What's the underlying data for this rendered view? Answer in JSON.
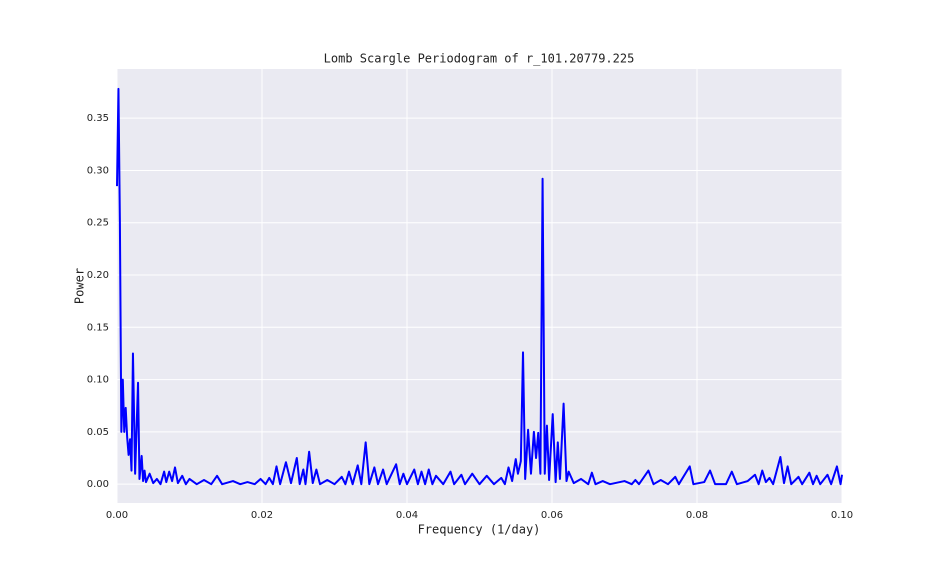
{
  "chart_data": {
    "type": "line",
    "title": "Lomb Scargle Periodogram of r_101.20779.225",
    "xlabel": "Frequency (1/day)",
    "ylabel": "Power",
    "color": "#0000ff",
    "grid": true,
    "xlim": [
      0,
      0.1
    ],
    "ylim": [
      -0.018,
      0.397
    ],
    "xticks": [
      {
        "value": 0,
        "label": "0.00"
      },
      {
        "value": 0.02,
        "label": "0.02"
      },
      {
        "value": 0.04,
        "label": "0.04"
      },
      {
        "value": 0.06,
        "label": "0.06"
      },
      {
        "value": 0.08,
        "label": "0.08"
      },
      {
        "value": 0.1,
        "label": "0.10"
      }
    ],
    "yticks": [
      {
        "value": 0,
        "label": "0.00"
      },
      {
        "value": 0.05,
        "label": "0.05"
      },
      {
        "value": 0.1,
        "label": "0.10"
      },
      {
        "value": 0.15,
        "label": "0.15"
      },
      {
        "value": 0.2,
        "label": "0.20"
      },
      {
        "value": 0.25,
        "label": "0.25"
      },
      {
        "value": 0.3,
        "label": "0.30"
      },
      {
        "value": 0.35,
        "label": "0.35"
      }
    ],
    "x": [
      0,
      0.0002,
      0.0004,
      0.0006,
      0.0008,
      0.001,
      0.0012,
      0.0014,
      0.0016,
      0.0018,
      0.002,
      0.0022,
      0.0025,
      0.0029,
      0.0031,
      0.0034,
      0.0036,
      0.0038,
      0.004,
      0.0045,
      0.005,
      0.0055,
      0.006,
      0.0065,
      0.0068,
      0.0072,
      0.0076,
      0.008,
      0.0084,
      0.009,
      0.0095,
      0.01,
      0.011,
      0.012,
      0.013,
      0.0138,
      0.0145,
      0.016,
      0.017,
      0.018,
      0.019,
      0.0198,
      0.0205,
      0.021,
      0.0215,
      0.022,
      0.0225,
      0.0233,
      0.024,
      0.0248,
      0.0252,
      0.0257,
      0.026,
      0.0265,
      0.027,
      0.0275,
      0.028,
      0.029,
      0.03,
      0.031,
      0.0315,
      0.032,
      0.0325,
      0.0332,
      0.0337,
      0.0343,
      0.0348,
      0.0355,
      0.036,
      0.0367,
      0.0372,
      0.0385,
      0.039,
      0.0395,
      0.04,
      0.041,
      0.0415,
      0.042,
      0.0425,
      0.043,
      0.0435,
      0.044,
      0.045,
      0.046,
      0.0465,
      0.0475,
      0.048,
      0.049,
      0.05,
      0.051,
      0.052,
      0.053,
      0.0535,
      0.054,
      0.0545,
      0.055,
      0.0553,
      0.0557,
      0.056,
      0.0563,
      0.0567,
      0.0571,
      0.0575,
      0.0578,
      0.0581,
      0.0584,
      0.0587,
      0.059,
      0.0593,
      0.0596,
      0.0601,
      0.0605,
      0.0608,
      0.0611,
      0.0616,
      0.062,
      0.0623,
      0.063,
      0.064,
      0.065,
      0.0655,
      0.066,
      0.067,
      0.068,
      0.07,
      0.071,
      0.0715,
      0.072,
      0.0733,
      0.074,
      0.075,
      0.076,
      0.077,
      0.0775,
      0.079,
      0.0795,
      0.081,
      0.0818,
      0.0825,
      0.084,
      0.0848,
      0.0855,
      0.087,
      0.088,
      0.0885,
      0.089,
      0.0895,
      0.09,
      0.0905,
      0.0915,
      0.092,
      0.0925,
      0.093,
      0.094,
      0.0945,
      0.0955,
      0.096,
      0.0965,
      0.097,
      0.098,
      0.0985,
      0.0993,
      0.0998,
      0.1
    ],
    "values": [
      0.285,
      0.378,
      0.25,
      0.05,
      0.1,
      0.05,
      0.073,
      0.045,
      0.028,
      0.043,
      0.013,
      0.125,
      0.01,
      0.097,
      0.005,
      0.027,
      0.003,
      0.013,
      0.002,
      0.01,
      0.001,
      0.005,
      0,
      0.012,
      0.002,
      0.012,
      0.003,
      0.016,
      0.001,
      0.008,
      0,
      0.005,
      0,
      0.004,
      0,
      0.008,
      0,
      0.003,
      0,
      0.002,
      0,
      0.005,
      0,
      0.006,
      0,
      0.017,
      0,
      0.021,
      0.001,
      0.025,
      0,
      0.014,
      0,
      0.031,
      0.001,
      0.014,
      0,
      0.004,
      0,
      0.007,
      0,
      0.012,
      0,
      0.018,
      0,
      0.04,
      0,
      0.016,
      0,
      0.014,
      0,
      0.019,
      0,
      0.01,
      0,
      0.014,
      0,
      0.012,
      0,
      0.014,
      0,
      0.008,
      0,
      0.012,
      0,
      0.009,
      0,
      0.01,
      0,
      0.008,
      0,
      0.006,
      0,
      0.016,
      0.003,
      0.024,
      0.01,
      0.022,
      0.126,
      0.005,
      0.052,
      0.01,
      0.05,
      0.025,
      0.049,
      0.01,
      0.292,
      0.01,
      0.056,
      0.004,
      0.067,
      0.002,
      0.04,
      0.005,
      0.077,
      0.003,
      0.012,
      0.001,
      0.005,
      0,
      0.011,
      0,
      0.003,
      0,
      0.003,
      0,
      0.004,
      0,
      0.013,
      0,
      0.004,
      0,
      0.007,
      0,
      0.017,
      0,
      0.002,
      0.013,
      0,
      0,
      0.012,
      0,
      0.003,
      0.009,
      0,
      0.013,
      0.002,
      0.006,
      0,
      0.026,
      0.001,
      0.017,
      0,
      0.007,
      0,
      0.011,
      0,
      0.008,
      0,
      0.009,
      0,
      0.017,
      0,
      0.009
    ]
  }
}
